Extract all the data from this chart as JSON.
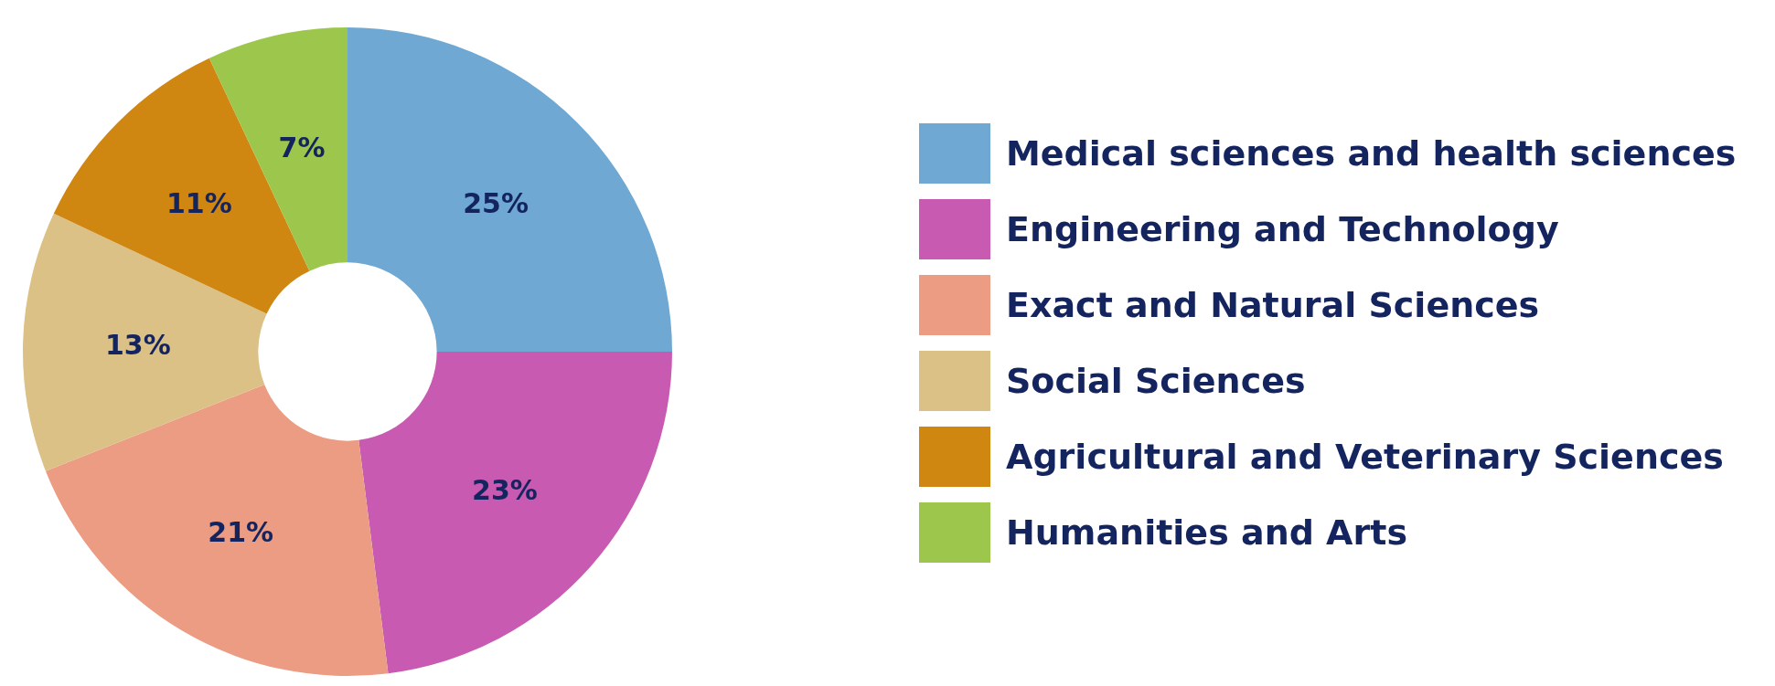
{
  "chart_data": {
    "type": "donut",
    "categories": [
      "Medical sciences and health sciences",
      "Engineering and Technology",
      "Exact and Natural Sciences",
      "Social Sciences",
      "Agricultural and Veterinary Sciences",
      "Humanities and Arts"
    ],
    "values": [
      25,
      23,
      21,
      13,
      11,
      7
    ],
    "colors": [
      "#6fa8d2",
      "#c95ab2",
      "#eb9c82",
      "#dcc186",
      "#d08712",
      "#9dc74c"
    ],
    "value_labels": [
      "25%",
      "23%",
      "21%",
      "13%",
      "11%",
      "7%"
    ],
    "legend": "right"
  }
}
